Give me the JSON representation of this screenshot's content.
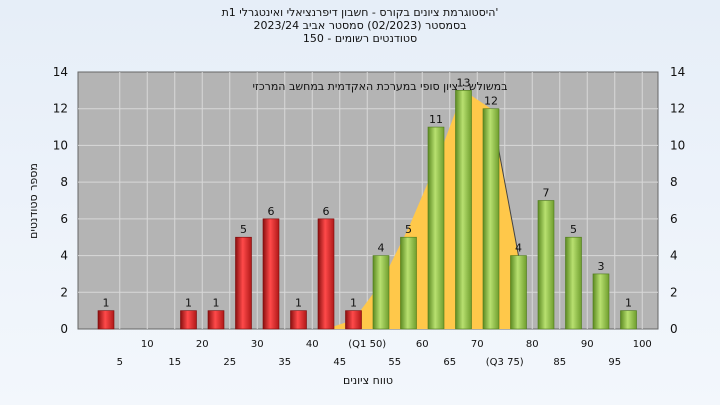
{
  "titles": {
    "line1": "היסטוגרמת ציונים בקורס - חשבון דיפרנציאלי ואינטגרלי 1ת'",
    "line2": "בסמסטר  (02/2023)  סמסטר אביב 2023/24",
    "line3": "סטודנטים רשומים - 150"
  },
  "chart_data": {
    "type": "bar",
    "ylabel": "מספר סטודנטים",
    "xlabel": "טווח ציונים",
    "annotation": "במשולש : ציון סופי במערכת האקדמית במחשב המרכזי",
    "ylim": [
      0,
      14
    ],
    "yticks": [
      0,
      2,
      4,
      6,
      8,
      10,
      12,
      14
    ],
    "grid": true,
    "categories": [
      "5",
      "10",
      "15",
      "20",
      "25",
      "30",
      "35",
      "40",
      "45",
      "(Q1 50)",
      "55",
      "60",
      "65",
      "70",
      "(Q3 75)",
      "80",
      "85",
      "90",
      "95",
      "100"
    ],
    "values": [
      1,
      0,
      0,
      1,
      1,
      5,
      6,
      1,
      6,
      1,
      4,
      5,
      11,
      13,
      12,
      4,
      7,
      5,
      3,
      1
    ],
    "bar_colors": [
      "red",
      "red",
      "red",
      "red",
      "red",
      "red",
      "red",
      "red",
      "red",
      "red",
      "green",
      "green",
      "green",
      "green",
      "green",
      "green",
      "green",
      "green",
      "green",
      "green"
    ],
    "distribution_curve": [
      [
        45,
        0
      ],
      [
        50,
        0.5
      ],
      [
        55,
        2.5
      ],
      [
        60,
        5.5
      ],
      [
        65,
        9
      ],
      [
        70,
        13
      ],
      [
        75,
        12
      ],
      [
        80,
        4
      ]
    ],
    "colors": {
      "red_bar": "#e02020",
      "green_bar": "#8cc43c",
      "curve_fill": "#ffc84a",
      "plot_bg": "#b4b4b4"
    }
  }
}
